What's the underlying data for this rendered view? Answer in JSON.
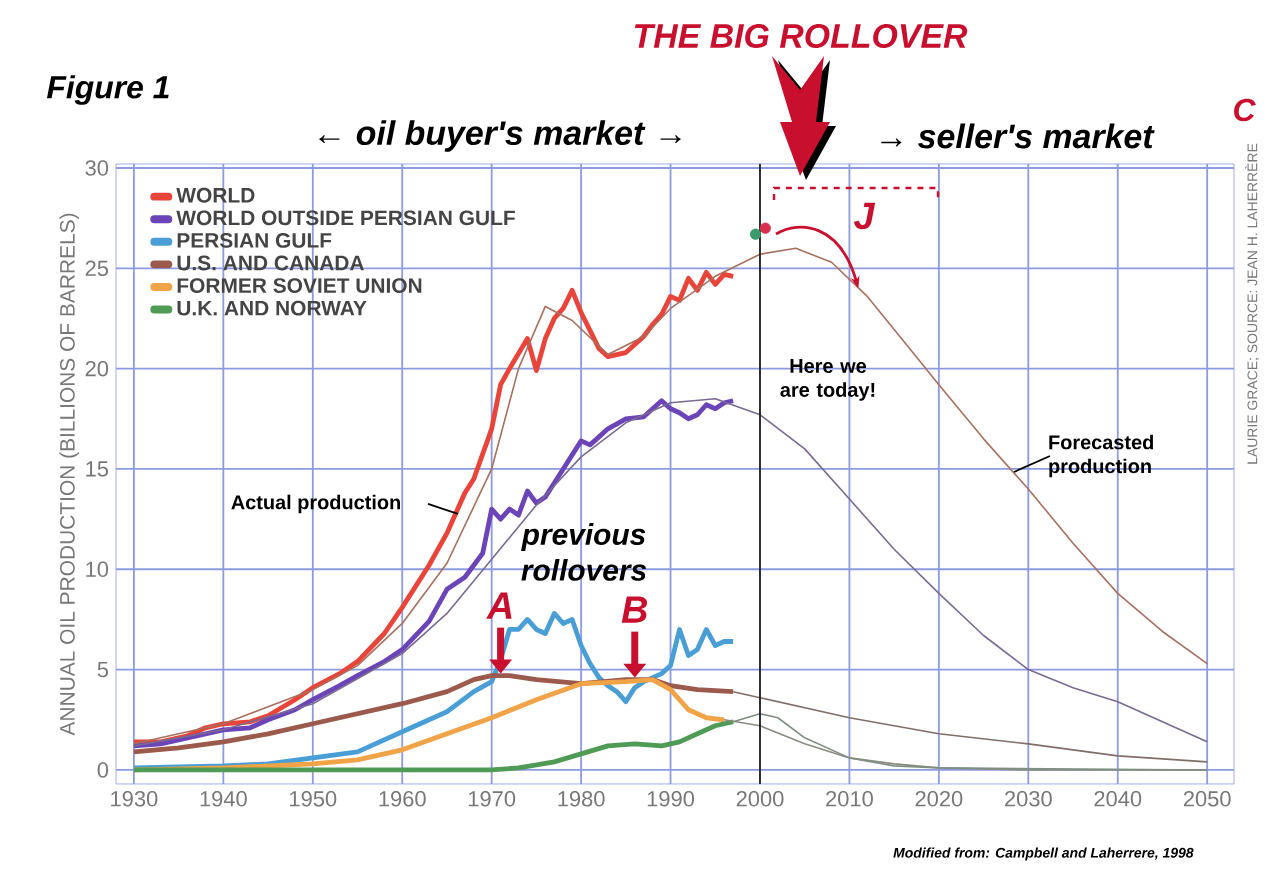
{
  "chart_data": {
    "type": "line",
    "title": "THE BIG ROLLOVER",
    "ylabel": "ANNUAL OIL PRODUCTION (BILLIONS OF BARRELS)",
    "xlim": [
      1928,
      2053
    ],
    "ylim": [
      -0.7,
      30.2
    ],
    "xticks": [
      1930,
      1940,
      1950,
      1960,
      1970,
      1980,
      1990,
      2000,
      2010,
      2020,
      2030,
      2040,
      2050
    ],
    "yticks": [
      0,
      5,
      10,
      15,
      20,
      25,
      30
    ],
    "grid": true,
    "legend": "top left",
    "series": [
      {
        "name": "WORLD",
        "color": "#e8443a",
        "x": [
          1930,
          1933,
          1936,
          1938,
          1940,
          1943,
          1945,
          1948,
          1950,
          1953,
          1955,
          1958,
          1960,
          1963,
          1965,
          1967,
          1968,
          1970,
          1971,
          1972,
          1974,
          1975,
          1976,
          1977,
          1978,
          1979,
          1980,
          1982,
          1983,
          1985,
          1987,
          1988,
          1989,
          1990,
          1991,
          1992,
          1993,
          1994,
          1995,
          1996,
          1997
        ],
        "values": [
          1.4,
          1.4,
          1.7,
          2.1,
          2.3,
          2.4,
          2.7,
          3.5,
          4.1,
          4.8,
          5.4,
          6.8,
          8.1,
          10.2,
          11.8,
          13.8,
          14.5,
          17.0,
          19.2,
          20.0,
          21.5,
          19.9,
          21.5,
          22.5,
          23.0,
          23.9,
          22.8,
          21.0,
          20.6,
          20.8,
          21.6,
          22.2,
          22.7,
          23.6,
          23.4,
          24.5,
          23.9,
          24.8,
          24.2,
          24.7,
          24.6
        ]
      },
      {
        "name": "WORLD OUTSIDE PERSIAN GULF",
        "color": "#6b44b8",
        "x": [
          1930,
          1933,
          1936,
          1940,
          1943,
          1945,
          1948,
          1950,
          1953,
          1955,
          1958,
          1960,
          1963,
          1965,
          1967,
          1968,
          1969,
          1970,
          1971,
          1972,
          1973,
          1974,
          1975,
          1976,
          1977,
          1978,
          1980,
          1981,
          1982,
          1983,
          1985,
          1987,
          1989,
          1990,
          1991,
          1992,
          1993,
          1994,
          1995,
          1996,
          1997
        ],
        "values": [
          1.2,
          1.3,
          1.6,
          2.0,
          2.1,
          2.5,
          3.0,
          3.5,
          4.2,
          4.7,
          5.4,
          6.0,
          7.4,
          9.0,
          9.6,
          10.2,
          10.8,
          13.0,
          12.5,
          13.0,
          12.7,
          13.9,
          13.3,
          13.6,
          14.3,
          15.0,
          16.4,
          16.2,
          16.6,
          17.0,
          17.5,
          17.6,
          18.4,
          18.0,
          17.8,
          17.5,
          17.7,
          18.2,
          18.0,
          18.3,
          18.4
        ]
      },
      {
        "name": "PERSIAN GULF",
        "color": "#4a9ed6",
        "x": [
          1930,
          1940,
          1945,
          1950,
          1955,
          1960,
          1965,
          1968,
          1970,
          1971,
          1972,
          1973,
          1974,
          1975,
          1976,
          1977,
          1978,
          1979,
          1980,
          1981,
          1982,
          1983,
          1984,
          1985,
          1986,
          1987,
          1988,
          1989,
          1990,
          1991,
          1992,
          1993,
          1994,
          1995,
          1996,
          1997
        ],
        "values": [
          0.1,
          0.2,
          0.3,
          0.6,
          0.9,
          1.9,
          2.9,
          3.9,
          4.4,
          5.5,
          7.0,
          7.0,
          7.5,
          7.0,
          6.8,
          7.8,
          7.3,
          7.5,
          6.2,
          5.3,
          4.6,
          4.2,
          3.9,
          3.4,
          4.1,
          4.4,
          4.6,
          4.8,
          5.2,
          7.0,
          5.7,
          6.0,
          7.0,
          6.2,
          6.4,
          6.4
        ]
      },
      {
        "name": "U.S. AND CANADA",
        "color": "#9c5a4c",
        "x": [
          1930,
          1935,
          1940,
          1945,
          1950,
          1955,
          1960,
          1965,
          1968,
          1970,
          1972,
          1975,
          1980,
          1985,
          1988,
          1990,
          1993,
          1997
        ],
        "values": [
          0.9,
          1.1,
          1.4,
          1.8,
          2.3,
          2.8,
          3.3,
          3.9,
          4.5,
          4.7,
          4.7,
          4.5,
          4.3,
          4.5,
          4.5,
          4.2,
          4.0,
          3.9
        ]
      },
      {
        "name": "FORMER SOVIET UNION",
        "color": "#f0a347",
        "x": [
          1930,
          1940,
          1950,
          1955,
          1960,
          1965,
          1970,
          1975,
          1980,
          1985,
          1988,
          1990,
          1992,
          1994,
          1996
        ],
        "values": [
          0.0,
          0.1,
          0.3,
          0.5,
          1.0,
          1.8,
          2.6,
          3.5,
          4.3,
          4.4,
          4.5,
          4.0,
          3.0,
          2.6,
          2.5
        ]
      },
      {
        "name": "U.K. AND NORWAY",
        "color": "#4f9a55",
        "x": [
          1930,
          1970,
          1973,
          1977,
          1980,
          1983,
          1986,
          1989,
          1991,
          1993,
          1995,
          1997
        ],
        "values": [
          0.0,
          0.0,
          0.1,
          0.4,
          0.8,
          1.2,
          1.3,
          1.2,
          1.4,
          1.8,
          2.2,
          2.4
        ]
      },
      {
        "color": "#a8705e",
        "x": [
          1930,
          1940,
          1950,
          1955,
          1960,
          1965,
          1970,
          1973,
          1976,
          1979,
          1983,
          1987,
          1990,
          1995,
          2000,
          2004,
          2008,
          2012,
          2016,
          2020,
          2025,
          2030,
          2035,
          2040,
          2045,
          2050
        ],
        "values": [
          1.3,
          2.3,
          4.0,
          5.2,
          7.3,
          10.3,
          15.0,
          20.0,
          23.1,
          22.4,
          20.7,
          21.6,
          23.0,
          24.6,
          25.7,
          26.0,
          25.3,
          23.6,
          21.4,
          19.2,
          16.5,
          14.0,
          11.3,
          8.8,
          6.9,
          5.3
        ]
      },
      {
        "color": "#7a6a92",
        "x": [
          1930,
          1940,
          1950,
          1960,
          1965,
          1970,
          1975,
          1980,
          1985,
          1990,
          1995,
          2000,
          2005,
          2010,
          2015,
          2020,
          2025,
          2030,
          2035,
          2040,
          2045,
          2050
        ],
        "values": [
          1.2,
          2.0,
          3.3,
          5.8,
          7.8,
          10.5,
          13.2,
          15.6,
          17.3,
          18.3,
          18.5,
          17.7,
          16.0,
          13.5,
          11.0,
          8.8,
          6.7,
          5.0,
          4.1,
          3.4,
          2.4,
          1.4
        ]
      },
      {
        "color": "#7f6f68",
        "x": [
          1997,
          2000,
          2010,
          2020,
          2030,
          2040,
          2050
        ],
        "values": [
          3.9,
          3.6,
          2.6,
          1.8,
          1.3,
          0.7,
          0.4
        ]
      },
      {
        "color": "#8a8a80",
        "x": [
          1996,
          2000,
          2005,
          2010,
          2015,
          2020,
          2030,
          2050
        ],
        "values": [
          2.5,
          2.2,
          1.3,
          0.6,
          0.3,
          0.1,
          0.0,
          0.0
        ]
      },
      {
        "color": "#7f8f80",
        "x": [
          1997,
          2000,
          2002,
          2005,
          2010,
          2015,
          2020,
          2050
        ],
        "values": [
          2.4,
          2.8,
          2.6,
          1.6,
          0.6,
          0.2,
          0.1,
          0.0
        ]
      },
      {
        "type": "scatter",
        "marker": "circle",
        "color": "#3a9a6a",
        "x": [
          1999.5
        ],
        "values": [
          26.7
        ]
      },
      {
        "type": "scatter",
        "marker": "circle",
        "color": "#d8304f",
        "x": [
          2000.6
        ],
        "values": [
          27.0
        ]
      }
    ],
    "ref_lines": [
      {
        "axis": "x",
        "value": 2000,
        "label": "Here we are today!",
        "color": "#222222"
      }
    ],
    "annotations": [
      "Figure 1",
      "← oil buyer's market →",
      "→ seller's market",
      "C",
      {
        "text": "J",
        "x": 2011,
        "y": 24.0
      },
      "Actual production",
      "Forecasted production",
      "previous rollovers",
      {
        "text": "A",
        "x": 1971,
        "y": 4.7
      },
      {
        "text": "B",
        "x": 1986,
        "y": 4.5
      },
      "LAURIE GRACE; SOURCE: JEAN H. LAHERRÈRE",
      "Modified from: Campbell and Laherrere, 1998"
    ]
  }
}
